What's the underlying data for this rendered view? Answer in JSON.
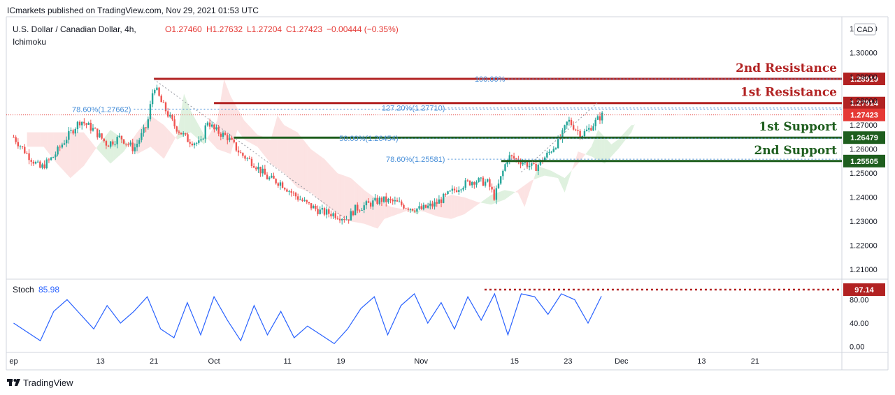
{
  "publisher": "ICmarkets published on TradingView.com, Nov 29, 2021 01:53 UTC",
  "symbol_title": "U.S. Dollar / Canadian Dollar, 4h,",
  "indicator": "Ichimoku",
  "ohlc": {
    "o": "O1.27460",
    "h": "H1.27632",
    "l": "L1.27204",
    "c": "C1.27423",
    "chg": "−0.00444 (−0.35%)"
  },
  "currency": "CAD",
  "footer_brand": "TradingView",
  "colors": {
    "resistance": "#b22222",
    "support": "#1e5e1e",
    "up": "#26a69a",
    "down": "#ef5350",
    "stoch": "#2962ff",
    "fib": "#4a90d9"
  },
  "levels": [
    {
      "label": "2nd Resistance",
      "price": 1.28919,
      "price_label": "1.28919",
      "kind": "resistance"
    },
    {
      "label": "1st Resistance",
      "price": 1.27914,
      "price_label": "1.27914",
      "kind": "resistance"
    },
    {
      "label": "1st Support",
      "price": 1.26479,
      "price_label": "1.26479",
      "kind": "support"
    },
    {
      "label": "2nd Support",
      "price": 1.25505,
      "price_label": "1.25505",
      "kind": "support"
    }
  ],
  "last_price": {
    "value": 1.27423,
    "label": "1.27423"
  },
  "fib_labels": [
    {
      "text": "100.00%",
      "price": 1.28919
    },
    {
      "text": "78.60%(1.27662)",
      "price": 1.27662
    },
    {
      "text": "127.20%(1.27710)",
      "price": 1.2771
    },
    {
      "text": "50.00%(1.26454)",
      "price": 1.26454
    },
    {
      "text": "78.60%(1.25581)",
      "price": 1.25581
    }
  ],
  "stoch": {
    "label": "Stoch",
    "value": "85.98",
    "marker": "97.14",
    "marker_value": 97.14
  },
  "chart_data": {
    "type": "line",
    "title": "U.S. Dollar / Canadian Dollar, 4h",
    "y_ticks": [
      "1.31000",
      "1.30000",
      "1.29000",
      "1.28000",
      "1.27000",
      "1.26000",
      "1.25000",
      "1.24000",
      "1.23000",
      "1.22000",
      "1.21000"
    ],
    "y_tick_values": [
      1.31,
      1.3,
      1.29,
      1.28,
      1.27,
      1.26,
      1.25,
      1.24,
      1.23,
      1.22,
      1.21
    ],
    "ylim": [
      1.206,
      1.315
    ],
    "x_ticks": [
      "ep",
      "13",
      "21",
      "Oct",
      "11",
      "19",
      "Nov",
      "15",
      "23",
      "Dec",
      "13",
      "21"
    ],
    "x_tick_days": [
      0,
      13,
      21,
      30,
      41,
      49,
      61,
      75,
      83,
      91,
      103,
      111
    ],
    "price_series": {
      "name": "USDCAD",
      "x_days": [
        0,
        2,
        4,
        6,
        8,
        10,
        12,
        14,
        16,
        18,
        20,
        21,
        22,
        24,
        26,
        28,
        29,
        30,
        32,
        34,
        36,
        38,
        40,
        42,
        44,
        46,
        48,
        50,
        51,
        53,
        55,
        57,
        59,
        61,
        63,
        65,
        67,
        69,
        71,
        72,
        74,
        76,
        78,
        80,
        82,
        83,
        85,
        86,
        88
      ],
      "values": [
        1.265,
        1.258,
        1.252,
        1.257,
        1.265,
        1.272,
        1.268,
        1.262,
        1.265,
        1.26,
        1.27,
        1.287,
        1.28,
        1.27,
        1.264,
        1.262,
        1.272,
        1.268,
        1.265,
        1.258,
        1.254,
        1.248,
        1.246,
        1.241,
        1.237,
        1.234,
        1.233,
        1.231,
        1.235,
        1.237,
        1.239,
        1.238,
        1.236,
        1.235,
        1.237,
        1.241,
        1.245,
        1.247,
        1.246,
        1.24,
        1.257,
        1.255,
        1.252,
        1.258,
        1.265,
        1.272,
        1.266,
        1.268,
        1.274
      ]
    },
    "stoch_series": {
      "name": "Stoch",
      "x_days": [
        0,
        2,
        4,
        6,
        8,
        10,
        12,
        14,
        16,
        18,
        20,
        22,
        24,
        26,
        28,
        30,
        32,
        34,
        36,
        38,
        40,
        42,
        44,
        46,
        48,
        50,
        52,
        54,
        56,
        58,
        60,
        62,
        64,
        66,
        68,
        70,
        72,
        74,
        76,
        78,
        80,
        82,
        84,
        86,
        88
      ],
      "values": [
        40,
        25,
        10,
        60,
        80,
        55,
        30,
        70,
        40,
        60,
        85,
        30,
        15,
        75,
        20,
        85,
        45,
        10,
        70,
        20,
        60,
        15,
        35,
        20,
        5,
        30,
        65,
        85,
        20,
        70,
        90,
        40,
        75,
        30,
        85,
        45,
        90,
        20,
        90,
        85,
        55,
        90,
        80,
        40,
        86
      ]
    },
    "stoch_ticks": [
      "80.00",
      "40.00",
      "0.00"
    ],
    "stoch_tick_values": [
      80,
      40,
      0
    ],
    "stoch_ylim": [
      -10,
      115
    ]
  }
}
